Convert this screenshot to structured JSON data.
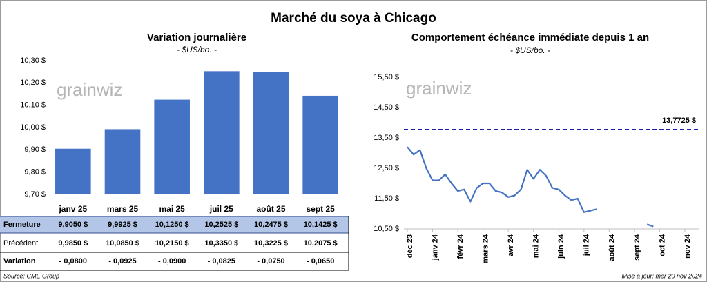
{
  "title": "Marché du soya à Chicago",
  "logo": "grainwiz",
  "chart_data": [
    {
      "type": "bar",
      "title": "Variation journalière",
      "subtitle": "- $US/bo. -",
      "categories": [
        "janv 25",
        "mars 25",
        "mai 25",
        "juil 25",
        "août 25",
        "sept 25"
      ],
      "values": [
        9.905,
        9.9925,
        10.125,
        10.2525,
        10.2475,
        10.1425
      ],
      "color": "#4472c4",
      "ylim": [
        9.7,
        10.3
      ],
      "yticks": [
        {
          "value": 9.7,
          "label": "9,70 $"
        },
        {
          "value": 9.8,
          "label": "9,80 $"
        },
        {
          "value": 9.9,
          "label": "9,90 $"
        },
        {
          "value": 10.0,
          "label": "10,00 $"
        },
        {
          "value": 10.1,
          "label": "10,10 $"
        },
        {
          "value": 10.2,
          "label": "10,20 $"
        },
        {
          "value": 10.3,
          "label": "10,30 $"
        }
      ]
    },
    {
      "type": "line",
      "title": "Comportement échéance immédiate depuis 1 an",
      "subtitle": "- $US/bo. -",
      "x": [
        "déc 23",
        null,
        null,
        null,
        "janv 24",
        null,
        null,
        null,
        "févr 24",
        null,
        null,
        null,
        "mars 24",
        null,
        null,
        null,
        "avr 24",
        null,
        null,
        null,
        "mai 24",
        null,
        null,
        null,
        "juin 24",
        null,
        null,
        null,
        "juil 24",
        null,
        null,
        null,
        "août 24",
        null,
        null,
        null,
        "sept 24",
        null,
        null,
        null,
        "oct 24",
        null,
        null,
        null,
        "nov 24"
      ],
      "values": [
        13.2,
        12.95,
        13.1,
        12.5,
        12.1,
        12.1,
        12.3,
        12.0,
        11.75,
        11.8,
        11.4,
        11.85,
        12.0,
        12.0,
        11.75,
        11.7,
        11.55,
        11.6,
        11.8,
        12.45,
        12.15,
        12.45,
        12.25,
        11.85,
        11.8,
        11.6,
        11.45,
        11.5,
        11.05,
        11.1,
        11.15,
        null,
        null,
        null,
        null,
        null,
        null,
        null,
        10.65,
        10.58,
        null,
        null,
        null,
        null,
        null
      ],
      "color": "#4472c4",
      "ylim": [
        10.5,
        16
      ],
      "yticks": [
        {
          "value": 10.5,
          "label": "10,50 $"
        },
        {
          "value": 11.5,
          "label": "11,50 $"
        },
        {
          "value": 12.5,
          "label": "12,50 $"
        },
        {
          "value": 13.5,
          "label": "13,50 $"
        },
        {
          "value": 14.5,
          "label": "14,50 $"
        },
        {
          "value": 15.5,
          "label": "15,50 $"
        }
      ],
      "reference_line": {
        "value": 13.7725,
        "label": "13,7725 $",
        "color": "#1c1ca8"
      }
    }
  ],
  "table": {
    "rows": [
      {
        "label": "Fermeture",
        "cells": [
          "9,9050 $",
          "9,9925 $",
          "10,1250 $",
          "10,2525 $",
          "10,2475 $",
          "10,1425 $"
        ]
      },
      {
        "label": "Précédent",
        "cells": [
          "9,9850 $",
          "10,0850 $",
          "10,2150 $",
          "10,3350 $",
          "10,3225 $",
          "10,2075 $"
        ]
      },
      {
        "label": "Variation",
        "cells": [
          "- 0,0800",
          "- 0,0925",
          "- 0,0900",
          "- 0,0825",
          "- 0,0750",
          "- 0,0650"
        ]
      }
    ]
  },
  "source": "Source: CME Group",
  "updated": "Mise à jour: mer 20 nov 2024"
}
